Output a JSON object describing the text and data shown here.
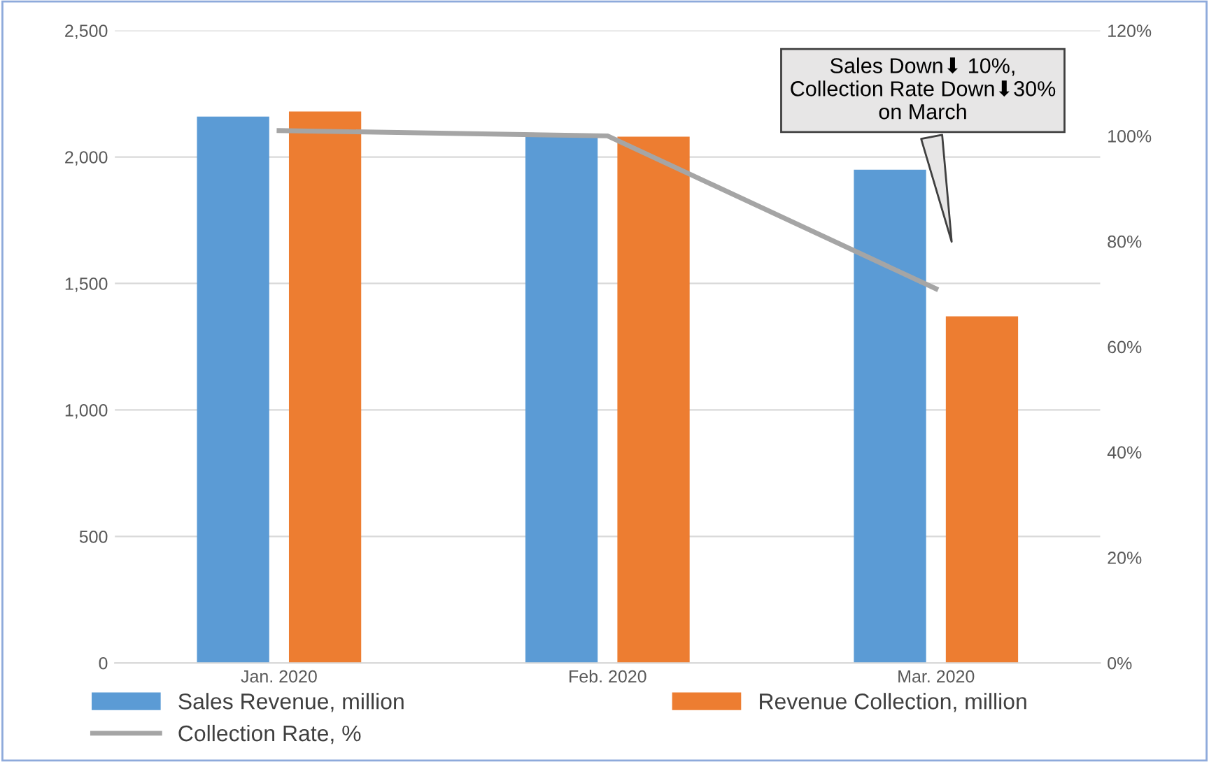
{
  "chart_data": {
    "type": "bar",
    "categories": [
      "Jan. 2020",
      "Feb. 2020",
      "Mar. 2020"
    ],
    "series": [
      {
        "name": "Sales Revenue, million",
        "color": "#5b9bd5",
        "values": [
          2160,
          2080,
          1950
        ]
      },
      {
        "name": "Revenue Collection, million",
        "color": "#ed7d31",
        "values": [
          2180,
          2080,
          1370
        ]
      },
      {
        "name": "Collection Rate, %",
        "type": "line",
        "axis": "y2",
        "color": "#a5a5a5",
        "values": [
          101,
          100,
          71
        ]
      }
    ],
    "ylim": [
      0,
      2500
    ],
    "yticks": [
      {
        "value": 0,
        "label": "0"
      },
      {
        "value": 500,
        "label": "500"
      },
      {
        "value": 1000,
        "label": "1,000"
      },
      {
        "value": 1500,
        "label": "1,500"
      },
      {
        "value": 2000,
        "label": "2,000"
      },
      {
        "value": 2500,
        "label": "2,500"
      }
    ],
    "y2lim": [
      0,
      120
    ],
    "y2ticks": [
      {
        "value": 0,
        "label": "0%"
      },
      {
        "value": 20,
        "label": "20%"
      },
      {
        "value": 40,
        "label": "40%"
      },
      {
        "value": 60,
        "label": "60%"
      },
      {
        "value": 80,
        "label": "80%"
      },
      {
        "value": 100,
        "label": "100%"
      },
      {
        "value": 120,
        "label": "120%"
      }
    ],
    "grid": "y",
    "legend": "bottom",
    "marker": "none",
    "line_style": "solid",
    "annotations": [
      "Sales Down⬇ 10%,\nCollection Rate Down⬇30%\non March"
    ]
  }
}
